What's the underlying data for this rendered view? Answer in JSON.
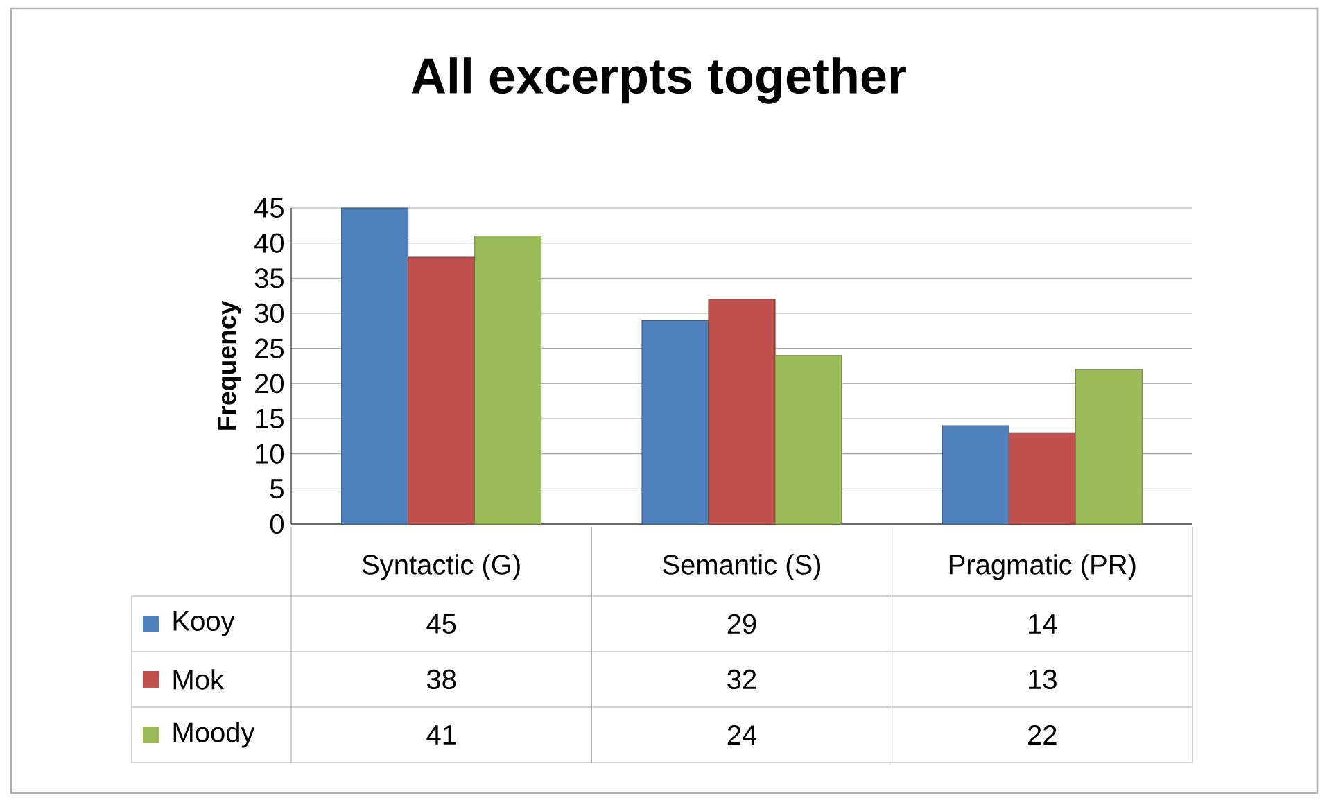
{
  "chart_data": {
    "type": "bar",
    "title": "All excerpts together",
    "ylabel": "Frequency",
    "categories": [
      "Syntactic (G)",
      "Semantic (S)",
      "Pragmatic (PR)"
    ],
    "series": [
      {
        "name": "Kooy",
        "color": "#4f81bd",
        "values": [
          45,
          29,
          14
        ]
      },
      {
        "name": "Mok",
        "color": "#c0504d",
        "values": [
          38,
          32,
          13
        ]
      },
      {
        "name": "Moody",
        "color": "#9bbb59",
        "values": [
          41,
          24,
          22
        ]
      }
    ],
    "ylim": [
      0,
      45
    ],
    "yticks": [
      0,
      5,
      10,
      15,
      20,
      25,
      30,
      35,
      40,
      45
    ],
    "grid": "y",
    "data_labels": true,
    "legend": "bottom left"
  }
}
